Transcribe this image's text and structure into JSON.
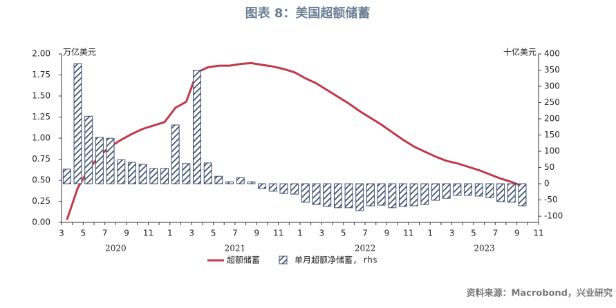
{
  "chart_data": {
    "type": "bar-line",
    "title": "图表 8：美国超额储蓄",
    "y_label": "万亿美元",
    "y2_label": "十亿美元",
    "source": "资料来源：Macrobond，兴业研究",
    "categories": [
      "3",
      null,
      "5",
      null,
      "7",
      null,
      "9",
      null,
      "11",
      null,
      "1",
      null,
      "3",
      null,
      "5",
      null,
      "7",
      null,
      "9",
      null,
      "11",
      null,
      "1",
      null,
      "3",
      null,
      "5",
      null,
      "7",
      null,
      "9",
      null,
      "11",
      null,
      "1",
      null,
      "3",
      null,
      "5",
      null,
      "7",
      null,
      "9",
      null,
      "11"
    ],
    "year_labels": [
      "2020",
      "2021",
      "2022",
      "2023"
    ],
    "ylim": [
      0,
      2
    ],
    "yticks": [
      {
        "value": 0,
        "label": "0.00"
      },
      {
        "value": 0.25,
        "label": "0.25"
      },
      {
        "value": 0.5,
        "label": "0.50"
      },
      {
        "value": 0.75,
        "label": "0.75"
      },
      {
        "value": 1,
        "label": "1.00"
      },
      {
        "value": 1.25,
        "label": "1.25"
      },
      {
        "value": 1.5,
        "label": "1.50"
      },
      {
        "value": 1.75,
        "label": "1.75"
      },
      {
        "value": 2,
        "label": "2.00"
      }
    ],
    "y2lim": [
      -119,
      400
    ],
    "y2ticks": [
      -100,
      -50,
      0,
      50,
      100,
      150,
      200,
      250,
      300,
      350,
      400
    ],
    "series": [
      {
        "name": "超额储蓄",
        "type": "line",
        "color": "#c0394a",
        "values": [
          0.03,
          0.41,
          0.63,
          0.79,
          0.9,
          0.98,
          1.05,
          1.11,
          1.15,
          1.19,
          1.36,
          1.43,
          1.78,
          1.84,
          1.86,
          1.86,
          1.88,
          1.89,
          1.87,
          1.85,
          1.82,
          1.78,
          1.71,
          1.65,
          1.57,
          1.49,
          1.41,
          1.32,
          1.24,
          1.16,
          1.07,
          0.98,
          0.9,
          0.84,
          0.78,
          0.73,
          0.7,
          0.66,
          0.62,
          0.57,
          0.52,
          0.48,
          0.43,
          null,
          null
        ]
      },
      {
        "name": "单月超额净储蓄, rhs",
        "type": "bar",
        "axis": "y2",
        "color": "#3d4f6e",
        "values": [
          45,
          370,
          208,
          143,
          140,
          74,
          66,
          60,
          47,
          47,
          181,
          62,
          349,
          64,
          23,
          6,
          19,
          6,
          -15,
          -23,
          -30,
          -32,
          -57,
          -64,
          -70,
          -74,
          -74,
          -83,
          -68,
          -66,
          -74,
          -70,
          -68,
          -64,
          -51,
          -45,
          -36,
          -36,
          -38,
          -43,
          -55,
          -57,
          -68,
          null,
          null
        ]
      }
    ]
  }
}
